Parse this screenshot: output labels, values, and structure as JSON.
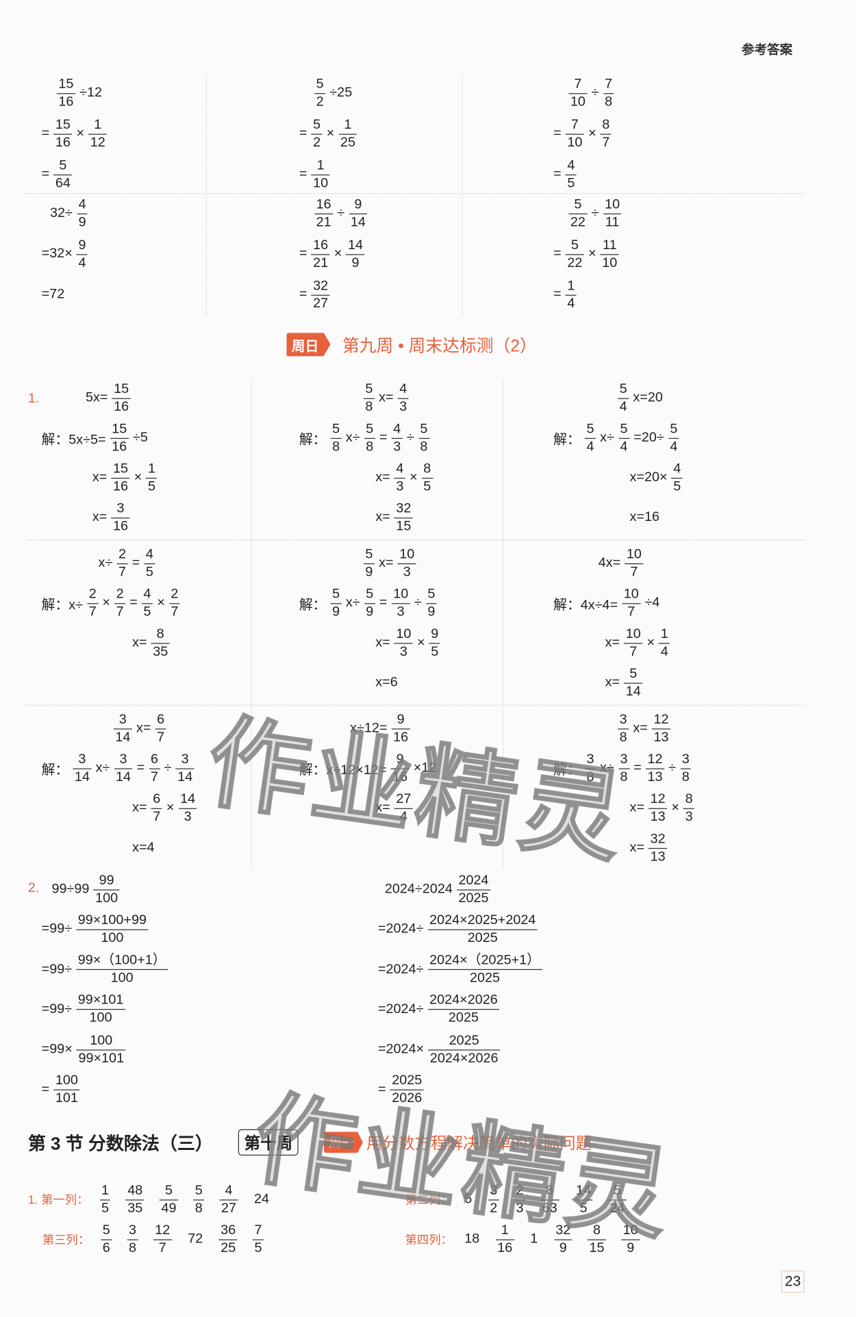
{
  "header": {
    "title": "参考答案"
  },
  "top_blocks": [
    {
      "lines": [
        [
          {
            "n": "15",
            "d": "16"
          },
          "÷12"
        ],
        [
          "=",
          {
            "n": "15",
            "d": "16"
          },
          "×",
          {
            "n": "1",
            "d": "12"
          }
        ],
        [
          "=",
          {
            "n": "5",
            "d": "64"
          }
        ]
      ]
    },
    {
      "lines": [
        [
          {
            "n": "5",
            "d": "2"
          },
          "÷25"
        ],
        [
          "=",
          {
            "n": "5",
            "d": "2"
          },
          "×",
          {
            "n": "1",
            "d": "25"
          }
        ],
        [
          "=",
          {
            "n": "1",
            "d": "10"
          }
        ]
      ]
    },
    {
      "lines": [
        [
          {
            "n": "7",
            "d": "10"
          },
          "÷",
          {
            "n": "7",
            "d": "8"
          }
        ],
        [
          "=",
          {
            "n": "7",
            "d": "10"
          },
          "×",
          {
            "n": "8",
            "d": "7"
          }
        ],
        [
          "=",
          {
            "n": "4",
            "d": "5"
          }
        ]
      ]
    },
    {
      "lines": [
        [
          "32÷",
          {
            "n": "4",
            "d": "9"
          }
        ],
        [
          "=32×",
          {
            "n": "9",
            "d": "4"
          }
        ],
        [
          "=72"
        ]
      ]
    },
    {
      "lines": [
        [
          {
            "n": "16",
            "d": "21"
          },
          "÷",
          {
            "n": "9",
            "d": "14"
          }
        ],
        [
          "=",
          {
            "n": "16",
            "d": "21"
          },
          "×",
          {
            "n": "14",
            "d": "9"
          }
        ],
        [
          "=",
          {
            "n": "32",
            "d": "27"
          }
        ]
      ]
    },
    {
      "lines": [
        [
          {
            "n": "5",
            "d": "22"
          },
          "÷",
          {
            "n": "10",
            "d": "11"
          }
        ],
        [
          "=",
          {
            "n": "5",
            "d": "22"
          },
          "×",
          {
            "n": "11",
            "d": "10"
          }
        ],
        [
          "=",
          {
            "n": "1",
            "d": "4"
          }
        ]
      ]
    }
  ],
  "sunday": {
    "tag": "周日",
    "title": "第九周 • 周末达标测（2）"
  },
  "sec1": {
    "number": "1.",
    "blocks": [
      {
        "lines": [
          [
            "5x=",
            {
              "n": "15",
              "d": "16"
            }
          ],
          [
            "解：5x÷5=",
            {
              "n": "15",
              "d": "16"
            },
            "÷5"
          ],
          [
            "x=",
            {
              "n": "15",
              "d": "16"
            },
            "×",
            {
              "n": "1",
              "d": "5"
            }
          ],
          [
            "x=",
            {
              "n": "3",
              "d": "16"
            }
          ]
        ]
      },
      {
        "lines": [
          [
            {
              "n": "5",
              "d": "8"
            },
            "x=",
            {
              "n": "4",
              "d": "3"
            }
          ],
          [
            "解：",
            {
              "n": "5",
              "d": "8"
            },
            "x÷",
            {
              "n": "5",
              "d": "8"
            },
            "=",
            {
              "n": "4",
              "d": "3"
            },
            "÷",
            {
              "n": "5",
              "d": "8"
            }
          ],
          [
            "x=",
            {
              "n": "4",
              "d": "3"
            },
            "×",
            {
              "n": "8",
              "d": "5"
            }
          ],
          [
            "x=",
            {
              "n": "32",
              "d": "15"
            }
          ]
        ]
      },
      {
        "lines": [
          [
            {
              "n": "5",
              "d": "4"
            },
            "x=20"
          ],
          [
            "解：",
            {
              "n": "5",
              "d": "4"
            },
            "x÷",
            {
              "n": "5",
              "d": "4"
            },
            "=20÷",
            {
              "n": "5",
              "d": "4"
            }
          ],
          [
            "x=20×",
            {
              "n": "4",
              "d": "5"
            }
          ],
          [
            "x=16"
          ]
        ]
      },
      {
        "lines": [
          [
            "x÷",
            {
              "n": "2",
              "d": "7"
            },
            "=",
            {
              "n": "4",
              "d": "5"
            }
          ],
          [
            "解：x÷",
            {
              "n": "2",
              "d": "7"
            },
            "×",
            {
              "n": "2",
              "d": "7"
            },
            "=",
            {
              "n": "4",
              "d": "5"
            },
            "×",
            {
              "n": "2",
              "d": "7"
            }
          ],
          [
            "x=",
            {
              "n": "8",
              "d": "35"
            }
          ]
        ]
      },
      {
        "lines": [
          [
            {
              "n": "5",
              "d": "9"
            },
            "x=",
            {
              "n": "10",
              "d": "3"
            }
          ],
          [
            "解：",
            {
              "n": "5",
              "d": "9"
            },
            "x÷",
            {
              "n": "5",
              "d": "9"
            },
            "=",
            {
              "n": "10",
              "d": "3"
            },
            "÷",
            {
              "n": "5",
              "d": "9"
            }
          ],
          [
            "x=",
            {
              "n": "10",
              "d": "3"
            },
            "×",
            {
              "n": "9",
              "d": "5"
            }
          ],
          [
            "x=6"
          ]
        ]
      },
      {
        "lines": [
          [
            "4x=",
            {
              "n": "10",
              "d": "7"
            }
          ],
          [
            "解：4x÷4=",
            {
              "n": "10",
              "d": "7"
            },
            "÷4"
          ],
          [
            "x=",
            {
              "n": "10",
              "d": "7"
            },
            "×",
            {
              "n": "1",
              "d": "4"
            }
          ],
          [
            "x=",
            {
              "n": "5",
              "d": "14"
            }
          ]
        ]
      },
      {
        "lines": [
          [
            {
              "n": "3",
              "d": "14"
            },
            "x=",
            {
              "n": "6",
              "d": "7"
            }
          ],
          [
            "解：",
            {
              "n": "3",
              "d": "14"
            },
            "x÷",
            {
              "n": "3",
              "d": "14"
            },
            "=",
            {
              "n": "6",
              "d": "7"
            },
            "÷",
            {
              "n": "3",
              "d": "14"
            }
          ],
          [
            "x=",
            {
              "n": "6",
              "d": "7"
            },
            "×",
            {
              "n": "14",
              "d": "3"
            }
          ],
          [
            "x=4"
          ]
        ]
      },
      {
        "lines": [
          [
            "x÷12=",
            {
              "n": "9",
              "d": "16"
            }
          ],
          [
            "解：x÷12×12=",
            {
              "n": "9",
              "d": "16"
            },
            "×12"
          ],
          [
            "x=",
            {
              "n": "27",
              "d": "4"
            }
          ]
        ]
      },
      {
        "lines": [
          [
            {
              "n": "3",
              "d": "8"
            },
            "x=",
            {
              "n": "12",
              "d": "13"
            }
          ],
          [
            "解：",
            {
              "n": "3",
              "d": "8"
            },
            "x÷",
            {
              "n": "3",
              "d": "8"
            },
            "=",
            {
              "n": "12",
              "d": "13"
            },
            "÷",
            {
              "n": "3",
              "d": "8"
            }
          ],
          [
            "x=",
            {
              "n": "12",
              "d": "13"
            },
            "×",
            {
              "n": "8",
              "d": "3"
            }
          ],
          [
            "x=",
            {
              "n": "32",
              "d": "13"
            }
          ]
        ]
      }
    ]
  },
  "sec2": {
    "number": "2.",
    "blocks": [
      {
        "lines": [
          [
            "99÷99",
            {
              "n": "99",
              "d": "100"
            }
          ],
          [
            "=99÷",
            {
              "n": "99×100+99",
              "d": "100"
            }
          ],
          [
            "=99÷",
            {
              "n": "99×（100+1）",
              "d": "100"
            }
          ],
          [
            "=99÷",
            {
              "n": "99×101",
              "d": "100"
            }
          ],
          [
            "=99×",
            {
              "n": "100",
              "d": "99×101"
            }
          ],
          [
            "=",
            {
              "n": "100",
              "d": "101"
            }
          ]
        ]
      },
      {
        "lines": [
          [
            "2024÷2024",
            {
              "n": "2024",
              "d": "2025"
            }
          ],
          [
            "=2024÷",
            {
              "n": "2024×2025+2024",
              "d": "2025"
            }
          ],
          [
            "=2024÷",
            {
              "n": "2024×（2025+1）",
              "d": "2025"
            }
          ],
          [
            "=2024÷",
            {
              "n": "2024×2026",
              "d": "2025"
            }
          ],
          [
            "=2024×",
            {
              "n": "2025",
              "d": "2024×2026"
            }
          ],
          [
            "=",
            {
              "n": "2025",
              "d": "2026"
            }
          ]
        ]
      }
    ]
  },
  "sec3": {
    "title": "第 3 节  分数除法（三）",
    "week": "第十周",
    "day_tag": "周一",
    "subtitle": "用分数方程解决简单的实际问题",
    "answers": [
      {
        "label": "1. 第一列：",
        "items": [
          {
            "n": "1",
            "d": "5"
          },
          {
            "n": "48",
            "d": "35"
          },
          {
            "n": "5",
            "d": "49"
          },
          {
            "n": "5",
            "d": "8"
          },
          {
            "n": "4",
            "d": "27"
          },
          "24"
        ]
      },
      {
        "label": "第二列：",
        "items": [
          "5",
          {
            "n": "3",
            "d": "2"
          },
          {
            "n": "2",
            "d": "3"
          },
          {
            "n": "8",
            "d": "63"
          },
          {
            "n": "14",
            "d": "5"
          },
          {
            "n": "5",
            "d": "24"
          }
        ]
      },
      {
        "label": "第三列：",
        "items": [
          {
            "n": "5",
            "d": "6"
          },
          {
            "n": "3",
            "d": "8"
          },
          {
            "n": "12",
            "d": "7"
          },
          "72",
          {
            "n": "36",
            "d": "25"
          },
          {
            "n": "7",
            "d": "5"
          }
        ]
      },
      {
        "label": "第四列：",
        "items": [
          "18",
          {
            "n": "1",
            "d": "16"
          },
          "1",
          {
            "n": "32",
            "d": "9"
          },
          {
            "n": "8",
            "d": "15"
          },
          {
            "n": "10",
            "d": "9"
          }
        ]
      }
    ]
  },
  "page_number": "23",
  "watermark": "作业精灵",
  "colors": {
    "accent": "#e8603c",
    "text": "#222222",
    "divider": "#cfcfcf"
  }
}
